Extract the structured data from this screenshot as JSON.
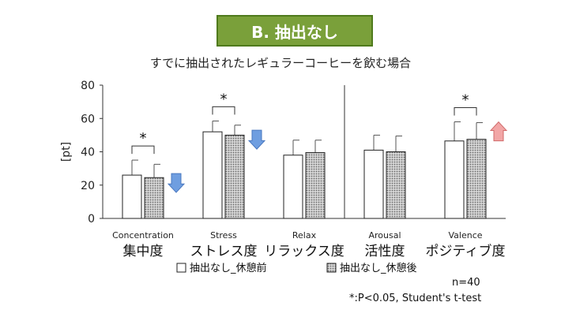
{
  "header": {
    "badge": "B. 抽出なし",
    "subtitle": "すでに抽出されたレギュラーコーヒーを飲む場合"
  },
  "notes": {
    "n": "n=40",
    "significance": "*:P<0.05, Student's t-test"
  },
  "colors": {
    "badge_bg": "#7aa03a",
    "arrow_down": "#6f9ee0",
    "arrow_up": "#f2a6a6"
  },
  "chart_data": {
    "type": "bar",
    "ylabel": "[pt]",
    "ylim": [
      0,
      80
    ],
    "yticks": [
      "0",
      "20",
      "40",
      "60",
      "80"
    ],
    "categories": [
      {
        "en": "Concentration",
        "ja": "集中度"
      },
      {
        "en": "Stress",
        "ja": "ストレス度"
      },
      {
        "en": "Relax",
        "ja": "リラックス度"
      },
      {
        "en": "Arousal",
        "ja": "活性度"
      },
      {
        "en": "Valence",
        "ja": "ポジティブ度"
      }
    ],
    "series": [
      {
        "name": "抽出なし_休憩前",
        "values": [
          26,
          52,
          38,
          41,
          46.5
        ],
        "errors": [
          9,
          6.5,
          9,
          9,
          11.5
        ],
        "pattern": "white"
      },
      {
        "name": "抽出なし_休憩後",
        "values": [
          24.5,
          50,
          39.5,
          40,
          47.5
        ],
        "errors": [
          8,
          6,
          7.5,
          9.5,
          10
        ],
        "pattern": "hatched"
      }
    ],
    "significance": [
      {
        "category": 0,
        "label": "*"
      },
      {
        "category": 1,
        "label": "*"
      },
      {
        "category": 4,
        "label": "*"
      }
    ],
    "arrows": [
      {
        "category": 0,
        "direction": "down"
      },
      {
        "category": 1,
        "direction": "down"
      },
      {
        "category": 4,
        "direction": "up"
      }
    ],
    "divider_after_category": 2,
    "grid": false,
    "legend_position": "bottom"
  }
}
